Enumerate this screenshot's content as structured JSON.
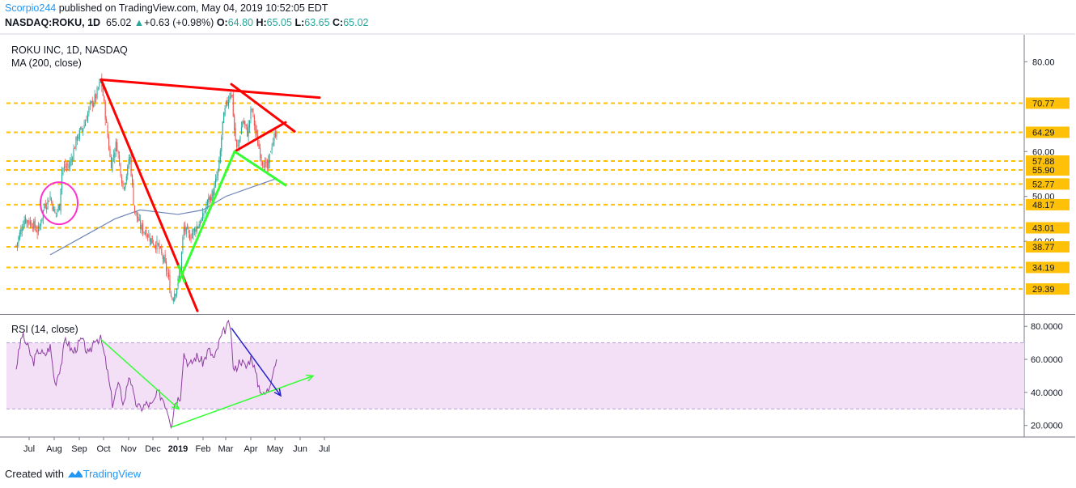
{
  "header": {
    "author": "Scorpio244",
    "published": "published on TradingView.com, May 04, 2019 10:52:05 EDT",
    "symbol": "NASDAQ:ROKU, 1D",
    "last": "65.02",
    "change": "+0.63 (+0.98%)",
    "o_label": "O:",
    "o_val": "64.80",
    "h_label": "H:",
    "h_val": "65.05",
    "l_label": "L:",
    "l_val": "63.65",
    "c_label": "C:",
    "c_val": "65.02"
  },
  "legend": {
    "title": "ROKU INC, 1D, NASDAQ",
    "ma": "MA (200, close)",
    "rsi": "RSI (14, close)"
  },
  "footer": {
    "created_with": "Created with",
    "brand": "TradingView"
  },
  "colors": {
    "up": "#26a69a",
    "down": "#ef5350",
    "ma": "#6f84b8",
    "rsi": "#8e3ea0",
    "rsi_band": "#f3e0f7",
    "level": "#ffc107",
    "trend_red": "#ff0000",
    "trend_green": "#33ff33",
    "trend_blue": "#2222cc",
    "circle": "#ff33cc"
  },
  "chart_data": [
    {
      "type": "candlestick",
      "title": "ROKU INC, 1D, NASDAQ",
      "y_axis_ticks": [
        "80.00",
        "60.00",
        "50.00",
        "40.00"
      ],
      "ylim": [
        24,
        86
      ],
      "x_axis_ticks": [
        "Jul",
        "Aug",
        "Sep",
        "Oct",
        "Nov",
        "Dec",
        "2019",
        "Feb",
        "Mar",
        "Apr",
        "May",
        "Jun",
        "Jul"
      ],
      "last_price": 65.02,
      "horizontal_levels": [
        "70.77",
        "64.29",
        "57.88",
        "55.90",
        "52.77",
        "48.17",
        "43.01",
        "38.77",
        "34.19",
        "29.39"
      ],
      "price_path": [
        {
          "x": "2018-06-15",
          "y": 39
        },
        {
          "x": "2018-06-25",
          "y": 45
        },
        {
          "x": "2018-07-05",
          "y": 44
        },
        {
          "x": "2018-07-12",
          "y": 42
        },
        {
          "x": "2018-07-20",
          "y": 48
        },
        {
          "x": "2018-07-27",
          "y": 50
        },
        {
          "x": "2018-08-02",
          "y": 46
        },
        {
          "x": "2018-08-08",
          "y": 48
        },
        {
          "x": "2018-08-10",
          "y": 56
        },
        {
          "x": "2018-08-20",
          "y": 57
        },
        {
          "x": "2018-08-29",
          "y": 63
        },
        {
          "x": "2018-09-07",
          "y": 66
        },
        {
          "x": "2018-09-14",
          "y": 70
        },
        {
          "x": "2018-09-21",
          "y": 72
        },
        {
          "x": "2018-09-28",
          "y": 76
        },
        {
          "x": "2018-10-02",
          "y": 70
        },
        {
          "x": "2018-10-10",
          "y": 57
        },
        {
          "x": "2018-10-17",
          "y": 62
        },
        {
          "x": "2018-10-25",
          "y": 52
        },
        {
          "x": "2018-10-31",
          "y": 56
        },
        {
          "x": "2018-11-02",
          "y": 60
        },
        {
          "x": "2018-11-08",
          "y": 47
        },
        {
          "x": "2018-11-16",
          "y": 43
        },
        {
          "x": "2018-11-23",
          "y": 42
        },
        {
          "x": "2018-11-30",
          "y": 40
        },
        {
          "x": "2018-12-07",
          "y": 39
        },
        {
          "x": "2018-12-14",
          "y": 36
        },
        {
          "x": "2018-12-20",
          "y": 32
        },
        {
          "x": "2018-12-24",
          "y": 27
        },
        {
          "x": "2018-12-31",
          "y": 30
        },
        {
          "x": "2019-01-04",
          "y": 34
        },
        {
          "x": "2019-01-08",
          "y": 43
        },
        {
          "x": "2019-01-15",
          "y": 41
        },
        {
          "x": "2019-01-23",
          "y": 43
        },
        {
          "x": "2019-01-31",
          "y": 45
        },
        {
          "x": "2019-02-07",
          "y": 49
        },
        {
          "x": "2019-02-14",
          "y": 51
        },
        {
          "x": "2019-02-21",
          "y": 57
        },
        {
          "x": "2019-02-25",
          "y": 66
        },
        {
          "x": "2019-03-01",
          "y": 70
        },
        {
          "x": "2019-03-08",
          "y": 74
        },
        {
          "x": "2019-03-12",
          "y": 64
        },
        {
          "x": "2019-03-15",
          "y": 60
        },
        {
          "x": "2019-03-22",
          "y": 67
        },
        {
          "x": "2019-03-28",
          "y": 64
        },
        {
          "x": "2019-04-02",
          "y": 70
        },
        {
          "x": "2019-04-08",
          "y": 63
        },
        {
          "x": "2019-04-15",
          "y": 58
        },
        {
          "x": "2019-04-22",
          "y": 56
        },
        {
          "x": "2019-04-26",
          "y": 61
        },
        {
          "x": "2019-05-03",
          "y": 65
        }
      ],
      "ma_200": [
        {
          "x": "2018-07-27",
          "y": 37
        },
        {
          "x": "2018-09-05",
          "y": 41
        },
        {
          "x": "2018-10-15",
          "y": 45
        },
        {
          "x": "2018-11-15",
          "y": 47
        },
        {
          "x": "2019-01-01",
          "y": 46
        },
        {
          "x": "2019-02-01",
          "y": 47
        },
        {
          "x": "2019-03-01",
          "y": 50
        },
        {
          "x": "2019-04-01",
          "y": 52
        },
        {
          "x": "2019-05-03",
          "y": 54
        }
      ],
      "trendlines": [
        {
          "color": "red",
          "from": {
            "x": "2018-09-28",
            "y": 76
          },
          "to": {
            "x": "2019-01-25",
            "y": 24.5
          }
        },
        {
          "color": "red",
          "from": {
            "x": "2018-09-28",
            "y": 76
          },
          "to": {
            "x": "2019-06-25",
            "y": 72
          }
        },
        {
          "color": "red",
          "from": {
            "x": "2019-03-08",
            "y": 75
          },
          "to": {
            "x": "2019-05-25",
            "y": 64.5
          }
        },
        {
          "color": "red",
          "from": {
            "x": "2019-03-12",
            "y": 60
          },
          "to": {
            "x": "2019-05-14",
            "y": 66.5
          }
        },
        {
          "color": "green",
          "from": {
            "x": "2019-01-02",
            "y": 31
          },
          "to": {
            "x": "2019-03-12",
            "y": 60
          }
        },
        {
          "color": "green",
          "from": {
            "x": "2019-01-02",
            "y": 34.5
          },
          "to": {
            "x": "2019-01-09",
            "y": 31
          }
        },
        {
          "color": "green",
          "from": {
            "x": "2019-03-12",
            "y": 60
          },
          "to": {
            "x": "2019-05-14",
            "y": 52.5
          }
        }
      ]
    },
    {
      "type": "line",
      "title": "RSI (14, close)",
      "y_axis_ticks": [
        "80.0000",
        "60.0000",
        "40.0000",
        "20.0000"
      ],
      "ylim": [
        13,
        86
      ],
      "band": [
        30,
        70
      ],
      "values": [
        {
          "x": "2018-06-15",
          "y": 55
        },
        {
          "x": "2018-06-22",
          "y": 75
        },
        {
          "x": "2018-06-29",
          "y": 68
        },
        {
          "x": "2018-07-06",
          "y": 58
        },
        {
          "x": "2018-07-13",
          "y": 66
        },
        {
          "x": "2018-07-20",
          "y": 62
        },
        {
          "x": "2018-07-27",
          "y": 68
        },
        {
          "x": "2018-08-02",
          "y": 45
        },
        {
          "x": "2018-08-10",
          "y": 58
        },
        {
          "x": "2018-08-15",
          "y": 73
        },
        {
          "x": "2018-08-24",
          "y": 64
        },
        {
          "x": "2018-09-04",
          "y": 72
        },
        {
          "x": "2018-09-13",
          "y": 62
        },
        {
          "x": "2018-09-20",
          "y": 73
        },
        {
          "x": "2018-09-28",
          "y": 72
        },
        {
          "x": "2018-10-05",
          "y": 55
        },
        {
          "x": "2018-10-12",
          "y": 33
        },
        {
          "x": "2018-10-19",
          "y": 45
        },
        {
          "x": "2018-10-26",
          "y": 33
        },
        {
          "x": "2018-11-02",
          "y": 52
        },
        {
          "x": "2018-11-08",
          "y": 35
        },
        {
          "x": "2018-11-15",
          "y": 30
        },
        {
          "x": "2018-11-23",
          "y": 33
        },
        {
          "x": "2018-11-30",
          "y": 32
        },
        {
          "x": "2018-12-07",
          "y": 40
        },
        {
          "x": "2018-12-14",
          "y": 36
        },
        {
          "x": "2018-12-20",
          "y": 28
        },
        {
          "x": "2018-12-24",
          "y": 20
        },
        {
          "x": "2018-12-28",
          "y": 34
        },
        {
          "x": "2019-01-04",
          "y": 38
        },
        {
          "x": "2019-01-08",
          "y": 64
        },
        {
          "x": "2019-01-15",
          "y": 56
        },
        {
          "x": "2019-01-24",
          "y": 62
        },
        {
          "x": "2019-02-01",
          "y": 58
        },
        {
          "x": "2019-02-08",
          "y": 66
        },
        {
          "x": "2019-02-15",
          "y": 60
        },
        {
          "x": "2019-02-22",
          "y": 72
        },
        {
          "x": "2019-02-28",
          "y": 78
        },
        {
          "x": "2019-03-06",
          "y": 82
        },
        {
          "x": "2019-03-11",
          "y": 52
        },
        {
          "x": "2019-03-19",
          "y": 60
        },
        {
          "x": "2019-03-26",
          "y": 55
        },
        {
          "x": "2019-04-02",
          "y": 62
        },
        {
          "x": "2019-04-10",
          "y": 45
        },
        {
          "x": "2019-04-17",
          "y": 38
        },
        {
          "x": "2019-04-23",
          "y": 42
        },
        {
          "x": "2019-04-29",
          "y": 55
        },
        {
          "x": "2019-05-03",
          "y": 60
        }
      ],
      "trendlines": [
        {
          "color": "green",
          "from": {
            "x": "2018-09-28",
            "y": 72
          },
          "to": {
            "x": "2019-01-02",
            "y": 30
          }
        },
        {
          "color": "green",
          "from": {
            "x": "2018-12-24",
            "y": 19
          },
          "to": {
            "x": "2019-06-17",
            "y": 50
          }
        },
        {
          "color": "blue",
          "from": {
            "x": "2019-03-08",
            "y": 79
          },
          "to": {
            "x": "2019-05-08",
            "y": 38
          }
        }
      ]
    }
  ]
}
